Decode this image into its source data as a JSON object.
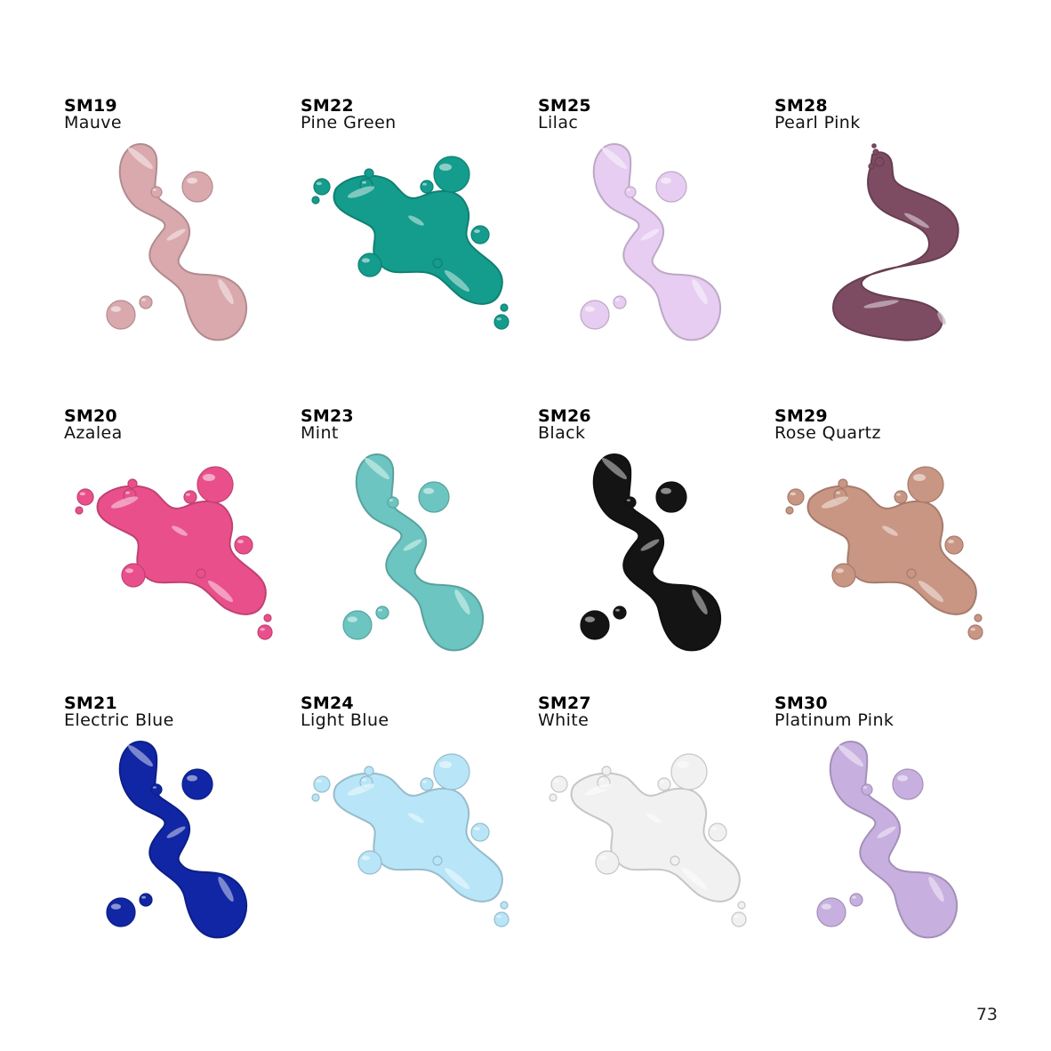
{
  "swatches": [
    {
      "code": "SM19",
      "name": "Mauve",
      "color": "#d9a9ae",
      "shape": "wave"
    },
    {
      "code": "SM22",
      "name": "Pine Green",
      "color": "#149c8c",
      "shape": "splash"
    },
    {
      "code": "SM25",
      "name": "Lilac",
      "color": "#e6cdf1",
      "shape": "wave"
    },
    {
      "code": "SM28",
      "name": "Pearl Pink",
      "color": "#7d4c63",
      "shape": "swirl"
    },
    {
      "code": "SM20",
      "name": "Azalea",
      "color": "#e9508b",
      "shape": "splash"
    },
    {
      "code": "SM23",
      "name": "Mint",
      "color": "#6cc5c0",
      "shape": "wave"
    },
    {
      "code": "SM26",
      "name": "Black",
      "color": "#141414",
      "shape": "wave"
    },
    {
      "code": "SM29",
      "name": "Rose Quartz",
      "color": "#c99684",
      "shape": "splash"
    },
    {
      "code": "SM21",
      "name": "Electric Blue",
      "color": "#1026a4",
      "shape": "wave"
    },
    {
      "code": "SM24",
      "name": "Light Blue",
      "color": "#b8e5f7",
      "shape": "splash"
    },
    {
      "code": "SM27",
      "name": "White",
      "color": "#f1f1f1",
      "shape": "splash"
    },
    {
      "code": "SM30",
      "name": "Platinum Pink",
      "color": "#c7b0df",
      "shape": "wave"
    }
  ],
  "page_number": "73"
}
